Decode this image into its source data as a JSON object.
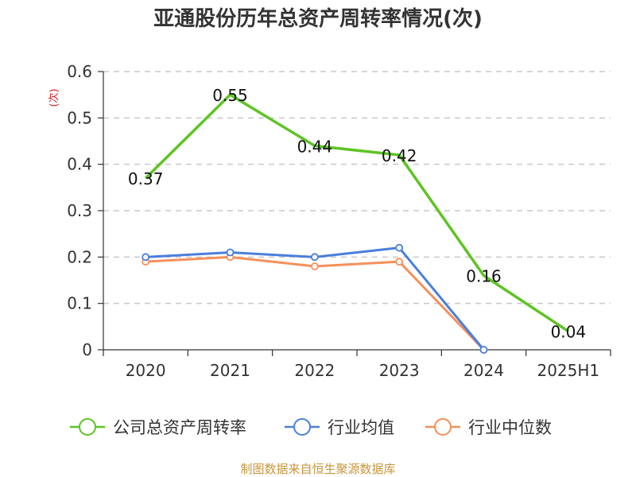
{
  "chart_data": {
    "type": "line",
    "title": "亚通股份历年总资产周转率情况(次)",
    "ylabel": "(次)",
    "xlabel": "",
    "categories": [
      "2020",
      "2021",
      "2022",
      "2023",
      "2024",
      "2025H1"
    ],
    "ylim": [
      0,
      0.6
    ],
    "yticks": [
      "0",
      "0.1",
      "0.2",
      "0.3",
      "0.4",
      "0.5",
      "0.6"
    ],
    "grid": true,
    "legend_position": "bottom",
    "series": [
      {
        "name": "公司总资产周转率",
        "color": "#5ec424",
        "values": [
          0.37,
          0.55,
          0.44,
          0.42,
          0.16,
          0.04
        ],
        "labels": [
          "0.37",
          "0.55",
          "0.44",
          "0.42",
          "0.16",
          "0.04"
        ],
        "markers": false
      },
      {
        "name": "行业均值",
        "color": "#4a7fdc",
        "values": [
          0.2,
          0.21,
          0.2,
          0.22,
          0.0,
          null
        ],
        "markers": true
      },
      {
        "name": "行业中位数",
        "color": "#f5905a",
        "values": [
          0.19,
          0.2,
          0.18,
          0.19,
          0.0,
          null
        ],
        "markers": true
      }
    ]
  },
  "source": "制图数据来自恒生聚源数据库"
}
